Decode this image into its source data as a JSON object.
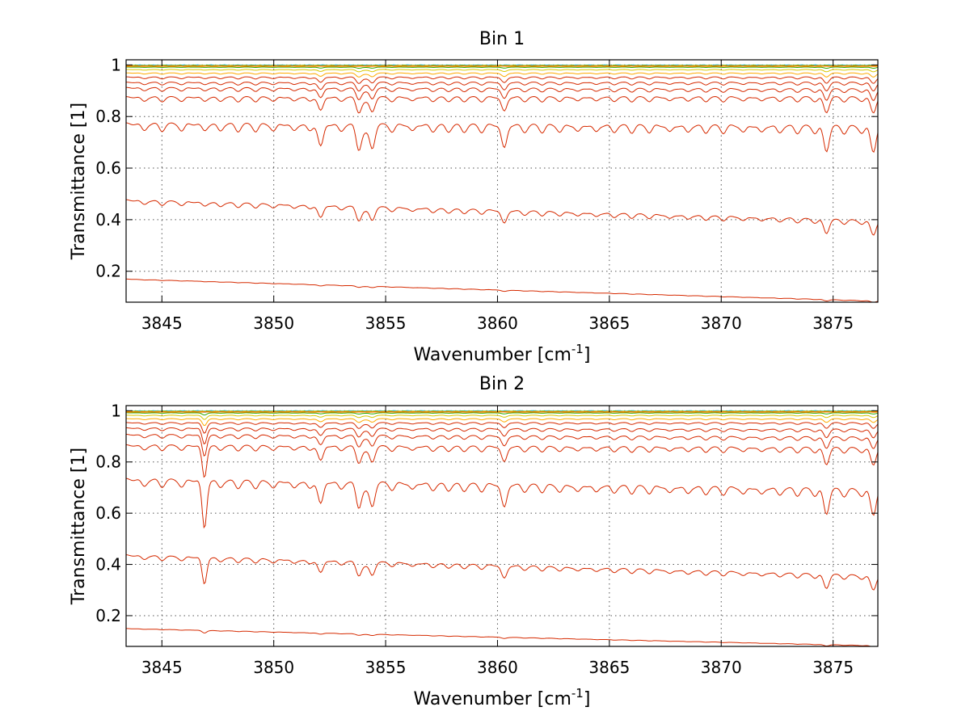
{
  "chart_data": [
    {
      "type": "line",
      "title": "Bin 1",
      "xlabel": "Wavenumber [cm",
      "xlabel_sup": "-1",
      "xlabel_end": "]",
      "ylabel": "Transmittance [1]",
      "xlim": [
        3843.4,
        3877
      ],
      "ylim": [
        0.08,
        1.02
      ],
      "xticks": [
        3845,
        3850,
        3855,
        3860,
        3865,
        3870,
        3875
      ],
      "yticks": [
        0.2,
        0.4,
        0.6,
        0.8,
        1
      ],
      "ytick_labels": [
        "0.2",
        "0.4",
        "0.6",
        "0.8",
        "1"
      ],
      "grid": true,
      "colors": {
        "spectra": "#d62a00",
        "near_unity": [
          "#00a8e0",
          "#2eaa00",
          "#d8c800",
          "#ffaa00",
          "#ff7a00"
        ]
      },
      "series_baselines": [
        {
          "start": 0.17,
          "end": 0.085,
          "depth": 0.005
        },
        {
          "start": 0.48,
          "end": 0.4,
          "depth": 0.05
        },
        {
          "start": 0.78,
          "end": 0.77,
          "depth": 0.09
        },
        {
          "start": 0.88,
          "end": 0.88,
          "depth": 0.055
        },
        {
          "start": 0.915,
          "end": 0.91,
          "depth": 0.04
        },
        {
          "start": 0.935,
          "end": 0.935,
          "depth": 0.03
        },
        {
          "start": 0.955,
          "end": 0.955,
          "depth": 0.022
        },
        {
          "start": 0.97,
          "end": 0.97,
          "depth": 0.014
        },
        {
          "start": 0.983,
          "end": 0.983,
          "depth": 0.008
        },
        {
          "start": 0.992,
          "end": 0.992,
          "depth": 0.004
        },
        {
          "start": 0.998,
          "end": 0.998,
          "depth": 0.002
        }
      ]
    },
    {
      "type": "line",
      "title": "Bin 2",
      "xlabel": "Wavenumber [cm",
      "xlabel_sup": "-1",
      "xlabel_end": "]",
      "ylabel": "Transmittance [1]",
      "xlim": [
        3843.4,
        3877
      ],
      "ylim": [
        0.08,
        1.02
      ],
      "xticks": [
        3845,
        3850,
        3855,
        3860,
        3865,
        3870,
        3875
      ],
      "yticks": [
        0.2,
        0.4,
        0.6,
        0.8,
        1
      ],
      "ytick_labels": [
        "0.2",
        "0.4",
        "0.6",
        "0.8",
        "1"
      ],
      "grid": true,
      "colors": {
        "spectra": "#d62a00",
        "near_unity": [
          "#00a8e0",
          "#2eaa00",
          "#d8c800",
          "#ffaa00",
          "#ff7a00"
        ]
      },
      "series_baselines": [
        {
          "start": 0.15,
          "end": 0.083,
          "depth": 0.005
        },
        {
          "start": 0.44,
          "end": 0.36,
          "depth": 0.05
        },
        {
          "start": 0.74,
          "end": 0.7,
          "depth": 0.09
        },
        {
          "start": 0.87,
          "end": 0.86,
          "depth": 0.06
        },
        {
          "start": 0.91,
          "end": 0.9,
          "depth": 0.04
        },
        {
          "start": 0.935,
          "end": 0.93,
          "depth": 0.03
        },
        {
          "start": 0.955,
          "end": 0.955,
          "depth": 0.02
        },
        {
          "start": 0.97,
          "end": 0.97,
          "depth": 0.013
        },
        {
          "start": 0.983,
          "end": 0.983,
          "depth": 0.008
        },
        {
          "start": 0.992,
          "end": 0.992,
          "depth": 0.004
        },
        {
          "start": 0.998,
          "end": 0.998,
          "depth": 0.002
        }
      ],
      "strong_line_x": 3846.9
    }
  ]
}
